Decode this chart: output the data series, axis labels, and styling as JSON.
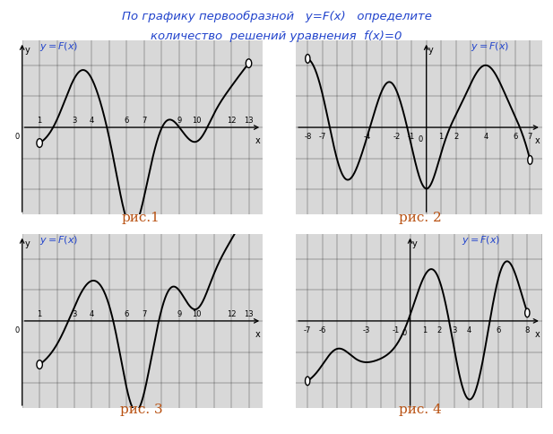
{
  "title_line1": "По графику первообразной   y=F(x)   определите",
  "title_line2": "количество  решений уравнения  f(x)=0",
  "fig_labels": [
    "рис.1",
    "рис. 2",
    "рис. 3",
    "рис. 4"
  ],
  "bg_color": "#d8d8d8",
  "curve_color": "#000000",
  "label_color": "#2244cc",
  "title_color": "#2244cc",
  "fig_label_color": "#b85010"
}
